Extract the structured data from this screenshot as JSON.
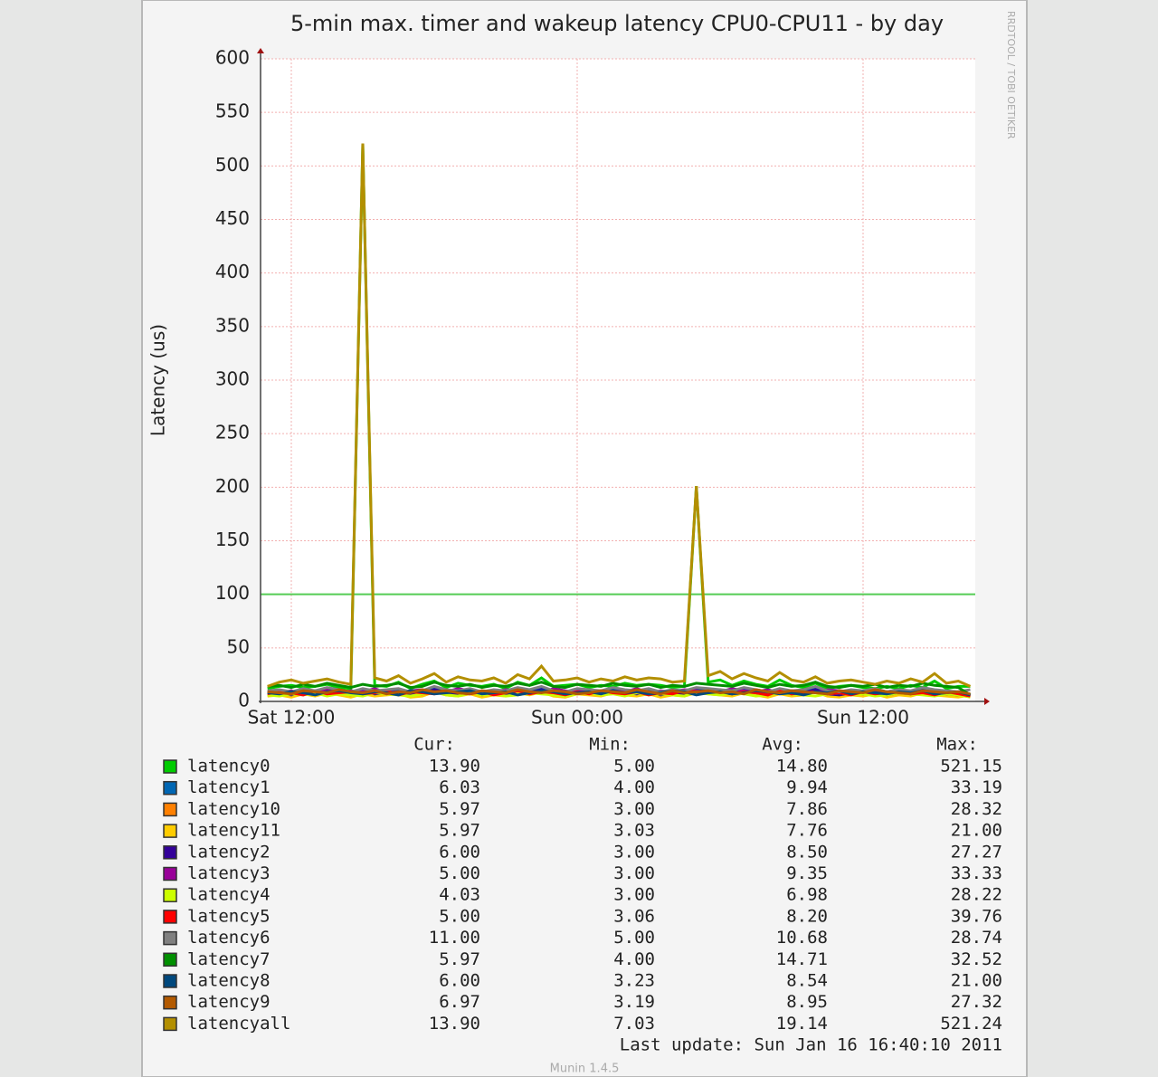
{
  "chart_data": {
    "type": "line",
    "title": "5-min max. timer and wakeup latency CPU0-CPU11 - by day",
    "y_label": "Latency (us)",
    "side_note": "RRDTOOL / TOBI OETIKER",
    "footer": "Munin 1.4.5",
    "last_update": "Last update:  Sun Jan 16 16:40:10 2011",
    "stat_headers": [
      "Cur:",
      "Min:",
      "Avg:",
      "Max:"
    ],
    "ylim": [
      0,
      600
    ],
    "yticks": [
      0,
      50,
      100,
      150,
      200,
      250,
      300,
      350,
      400,
      450,
      500,
      550,
      600
    ],
    "grid": true,
    "threshold": {
      "value": 100,
      "color": "#55cc55"
    },
    "categories": [
      null,
      null,
      "Sat 12:00",
      null,
      null,
      null,
      null,
      null,
      null,
      null,
      null,
      null,
      null,
      null,
      null,
      null,
      null,
      null,
      null,
      null,
      null,
      null,
      null,
      null,
      null,
      null,
      "Sun 00:00",
      null,
      null,
      null,
      null,
      null,
      null,
      null,
      null,
      null,
      null,
      null,
      null,
      null,
      null,
      null,
      null,
      null,
      null,
      null,
      null,
      null,
      null,
      null,
      "Sun 12:00",
      null,
      null,
      null,
      null,
      null,
      null,
      null,
      null,
      null
    ],
    "series": [
      {
        "name": "latency0",
        "color": "#00cc00",
        "stats": [
          "13.90",
          "5.00",
          "14.80",
          "521.15"
        ],
        "values": [
          12,
          14,
          15,
          13,
          14,
          16,
          13,
          12,
          521,
          15,
          14,
          18,
          12,
          16,
          19,
          13,
          17,
          15,
          14,
          16,
          12,
          18,
          15,
          22,
          14,
          15,
          16,
          13,
          15,
          14,
          17,
          15,
          16,
          15,
          13,
          14,
          201,
          18,
          20,
          15,
          19,
          16,
          14,
          20,
          15,
          13,
          17,
          12,
          14,
          15,
          13,
          12,
          14,
          12,
          15,
          13,
          19,
          12,
          14,
          14
        ]
      },
      {
        "name": "latency1",
        "color": "#0066b3",
        "stats": [
          "6.03",
          "4.00",
          "9.94",
          "33.19"
        ],
        "values": [
          8,
          9,
          7,
          10,
          8,
          12,
          9,
          7,
          11,
          8,
          9,
          10,
          7,
          8,
          13,
          9,
          8,
          10,
          7,
          9,
          8,
          11,
          9,
          12,
          8,
          7,
          10,
          9,
          8,
          11,
          9,
          8,
          10,
          7,
          9,
          8,
          12,
          10,
          9,
          8,
          11,
          9,
          7,
          10,
          8,
          9,
          12,
          8,
          7,
          9,
          8,
          10,
          7,
          9,
          8,
          11,
          9,
          8,
          7,
          6
        ]
      },
      {
        "name": "latency10",
        "color": "#ff8000",
        "stats": [
          "5.97",
          "3.00",
          "7.86",
          "28.32"
        ],
        "values": [
          6,
          7,
          5,
          8,
          6,
          9,
          7,
          5,
          8,
          6,
          7,
          8,
          5,
          6,
          10,
          7,
          6,
          8,
          5,
          7,
          6,
          9,
          7,
          10,
          6,
          5,
          8,
          7,
          6,
          9,
          7,
          6,
          8,
          5,
          7,
          6,
          9,
          8,
          7,
          6,
          9,
          7,
          5,
          8,
          6,
          7,
          10,
          6,
          5,
          7,
          6,
          8,
          5,
          7,
          6,
          9,
          7,
          6,
          5,
          6
        ]
      },
      {
        "name": "latency11",
        "color": "#ffcc00",
        "stats": [
          "5.97",
          "3.03",
          "7.76",
          "21.00"
        ],
        "values": [
          5,
          6,
          4,
          7,
          5,
          8,
          6,
          4,
          7,
          5,
          6,
          7,
          4,
          5,
          9,
          6,
          5,
          7,
          4,
          6,
          5,
          8,
          6,
          9,
          5,
          4,
          7,
          6,
          5,
          8,
          6,
          5,
          7,
          4,
          6,
          5,
          8,
          7,
          6,
          5,
          8,
          6,
          4,
          7,
          5,
          6,
          9,
          5,
          4,
          6,
          5,
          7,
          4,
          6,
          5,
          8,
          6,
          5,
          4,
          6
        ]
      },
      {
        "name": "latency2",
        "color": "#330099",
        "stats": [
          "6.00",
          "3.00",
          "8.50",
          "27.27"
        ],
        "values": [
          7,
          8,
          6,
          9,
          7,
          10,
          8,
          6,
          9,
          7,
          8,
          9,
          6,
          7,
          11,
          8,
          7,
          9,
          6,
          8,
          7,
          10,
          8,
          11,
          7,
          6,
          9,
          8,
          7,
          10,
          8,
          7,
          9,
          6,
          8,
          7,
          10,
          9,
          8,
          7,
          10,
          8,
          6,
          9,
          7,
          8,
          11,
          7,
          6,
          8,
          7,
          9,
          6,
          8,
          7,
          10,
          8,
          7,
          6,
          6
        ]
      },
      {
        "name": "latency3",
        "color": "#990099",
        "stats": [
          "5.00",
          "3.00",
          "9.35",
          "33.33"
        ],
        "values": [
          9,
          8,
          10,
          7,
          9,
          11,
          8,
          10,
          9,
          12,
          8,
          9,
          10,
          11,
          8,
          9,
          12,
          10,
          8,
          9,
          11,
          10,
          9,
          8,
          12,
          10,
          9,
          11,
          8,
          10,
          9,
          12,
          8,
          10,
          9,
          11,
          10,
          8,
          9,
          12,
          10,
          9,
          11,
          8,
          10,
          9,
          8,
          11,
          10,
          9,
          8,
          10,
          9,
          11,
          8,
          9,
          10,
          8,
          9,
          5
        ]
      },
      {
        "name": "latency4",
        "color": "#ccff00",
        "stats": [
          "4.03",
          "3.00",
          "6.98",
          "28.22"
        ],
        "values": [
          6,
          5,
          7,
          6,
          8,
          5,
          7,
          6,
          5,
          8,
          7,
          6,
          5,
          7,
          9,
          6,
          5,
          8,
          6,
          7,
          5,
          6,
          8,
          7,
          6,
          5,
          7,
          8,
          6,
          7,
          5,
          8,
          6,
          7,
          6,
          5,
          9,
          7,
          6,
          8,
          7,
          5,
          6,
          8,
          7,
          6,
          5,
          7,
          8,
          6,
          7,
          5,
          6,
          8,
          7,
          6,
          5,
          7,
          6,
          4
        ]
      },
      {
        "name": "latency5",
        "color": "#ff0000",
        "stats": [
          "5.00",
          "3.06",
          "8.20",
          "39.76"
        ],
        "values": [
          7,
          9,
          8,
          6,
          10,
          7,
          8,
          9,
          7,
          8,
          10,
          6,
          9,
          8,
          7,
          11,
          8,
          7,
          9,
          6,
          8,
          10,
          7,
          9,
          8,
          6,
          9,
          7,
          10,
          8,
          7,
          9,
          6,
          8,
          7,
          10,
          9,
          8,
          11,
          7,
          9,
          8,
          6,
          10,
          7,
          8,
          9,
          7,
          8,
          6,
          9,
          7,
          8,
          10,
          7,
          8,
          6,
          9,
          7,
          5
        ]
      },
      {
        "name": "latency6",
        "color": "#808080",
        "stats": [
          "11.00",
          "5.00",
          "10.68",
          "28.74"
        ],
        "values": [
          10,
          11,
          9,
          12,
          10,
          13,
          11,
          9,
          12,
          10,
          11,
          12,
          9,
          10,
          14,
          11,
          10,
          12,
          9,
          11,
          10,
          13,
          11,
          14,
          10,
          9,
          12,
          11,
          10,
          13,
          11,
          10,
          12,
          9,
          11,
          10,
          13,
          12,
          11,
          10,
          13,
          11,
          9,
          12,
          10,
          11,
          14,
          10,
          9,
          11,
          10,
          12,
          9,
          11,
          10,
          13,
          11,
          10,
          9,
          11
        ]
      },
      {
        "name": "latency7",
        "color": "#008f00",
        "stats": [
          "5.97",
          "4.00",
          "14.71",
          "32.52"
        ],
        "values": [
          14,
          15,
          13,
          16,
          14,
          17,
          15,
          13,
          16,
          14,
          15,
          17,
          13,
          14,
          18,
          15,
          14,
          16,
          13,
          15,
          14,
          17,
          15,
          18,
          14,
          13,
          16,
          15,
          14,
          17,
          15,
          14,
          16,
          13,
          15,
          14,
          17,
          16,
          15,
          14,
          17,
          15,
          13,
          16,
          14,
          15,
          18,
          14,
          13,
          15,
          14,
          16,
          13,
          15,
          14,
          17,
          15,
          14,
          13,
          6
        ]
      },
      {
        "name": "latency8",
        "color": "#00487d",
        "stats": [
          "6.00",
          "3.23",
          "8.54",
          "21.00"
        ],
        "values": [
          8,
          7,
          9,
          8,
          6,
          9,
          10,
          8,
          7,
          9,
          8,
          6,
          10,
          9,
          7,
          8,
          9,
          10,
          7,
          8,
          9,
          6,
          8,
          10,
          9,
          7,
          8,
          9,
          7,
          10,
          8,
          9,
          7,
          8,
          10,
          9,
          6,
          8,
          9,
          7,
          8,
          10,
          9,
          7,
          8,
          6,
          9,
          8,
          10,
          7,
          9,
          8,
          7,
          9,
          8,
          10,
          7,
          8,
          9,
          6
        ]
      },
      {
        "name": "latency9",
        "color": "#b35a00",
        "stats": [
          "6.97",
          "3.19",
          "8.95",
          "27.32"
        ],
        "values": [
          9,
          8,
          7,
          10,
          9,
          8,
          11,
          9,
          8,
          10,
          7,
          9,
          8,
          11,
          9,
          10,
          8,
          7,
          10,
          9,
          8,
          11,
          9,
          8,
          10,
          9,
          7,
          8,
          10,
          9,
          8,
          11,
          9,
          7,
          10,
          8,
          9,
          10,
          8,
          9,
          7,
          11,
          9,
          8,
          10,
          9,
          8,
          7,
          10,
          9,
          8,
          11,
          9,
          8,
          7,
          10,
          9,
          8,
          9,
          7
        ]
      },
      {
        "name": "latencyall",
        "color": "#b38f00",
        "stats": [
          "13.90",
          "7.03",
          "19.14",
          "521.24"
        ],
        "values": [
          14,
          18,
          20,
          17,
          19,
          21,
          18,
          16,
          521,
          22,
          19,
          24,
          17,
          21,
          26,
          18,
          23,
          20,
          19,
          22,
          17,
          25,
          21,
          33,
          19,
          20,
          22,
          18,
          21,
          19,
          23,
          20,
          22,
          21,
          18,
          19,
          201,
          24,
          28,
          21,
          26,
          22,
          19,
          27,
          20,
          18,
          23,
          17,
          19,
          20,
          18,
          16,
          19,
          17,
          21,
          18,
          26,
          17,
          19,
          14
        ]
      }
    ]
  }
}
